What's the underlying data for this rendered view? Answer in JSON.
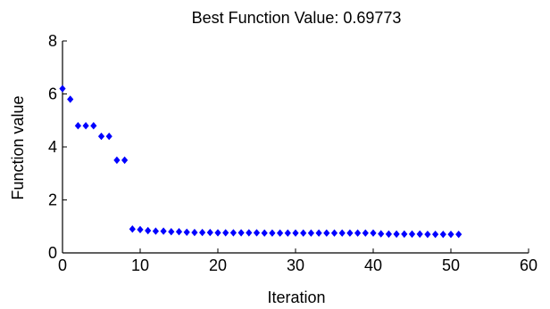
{
  "chart_data": {
    "type": "scatter",
    "title": "Best Function Value: 0.69773",
    "xlabel": "Iteration",
    "ylabel": "Function value",
    "xlim": [
      0,
      60
    ],
    "ylim": [
      0,
      8
    ],
    "xticks": [
      "0",
      "10",
      "20",
      "30",
      "40",
      "50",
      "60"
    ],
    "yticks": [
      "0",
      "2",
      "4",
      "6",
      "8"
    ],
    "grid": false,
    "marker": "diamond",
    "marker_color": "#0000ff",
    "series": [
      {
        "x": [
          0,
          1,
          2,
          3,
          4,
          5,
          6,
          7,
          8,
          9,
          10,
          11,
          12,
          13,
          14,
          15,
          16,
          17,
          18,
          19,
          20,
          21,
          22,
          23,
          24,
          25,
          26,
          27,
          28,
          29,
          30,
          31,
          32,
          33,
          34,
          35,
          36,
          37,
          38,
          39,
          40,
          41,
          42,
          43,
          44,
          45,
          46,
          47,
          48,
          49,
          50,
          51
        ],
        "y": [
          6.2,
          5.8,
          4.8,
          4.8,
          4.8,
          4.4,
          4.4,
          3.5,
          3.5,
          0.9,
          0.88,
          0.84,
          0.82,
          0.82,
          0.8,
          0.8,
          0.78,
          0.77,
          0.77,
          0.77,
          0.76,
          0.76,
          0.76,
          0.76,
          0.76,
          0.76,
          0.75,
          0.75,
          0.75,
          0.75,
          0.75,
          0.75,
          0.75,
          0.75,
          0.75,
          0.75,
          0.75,
          0.75,
          0.75,
          0.75,
          0.75,
          0.72,
          0.71,
          0.71,
          0.71,
          0.71,
          0.71,
          0.7,
          0.7,
          0.7,
          0.7,
          0.7
        ]
      }
    ]
  }
}
